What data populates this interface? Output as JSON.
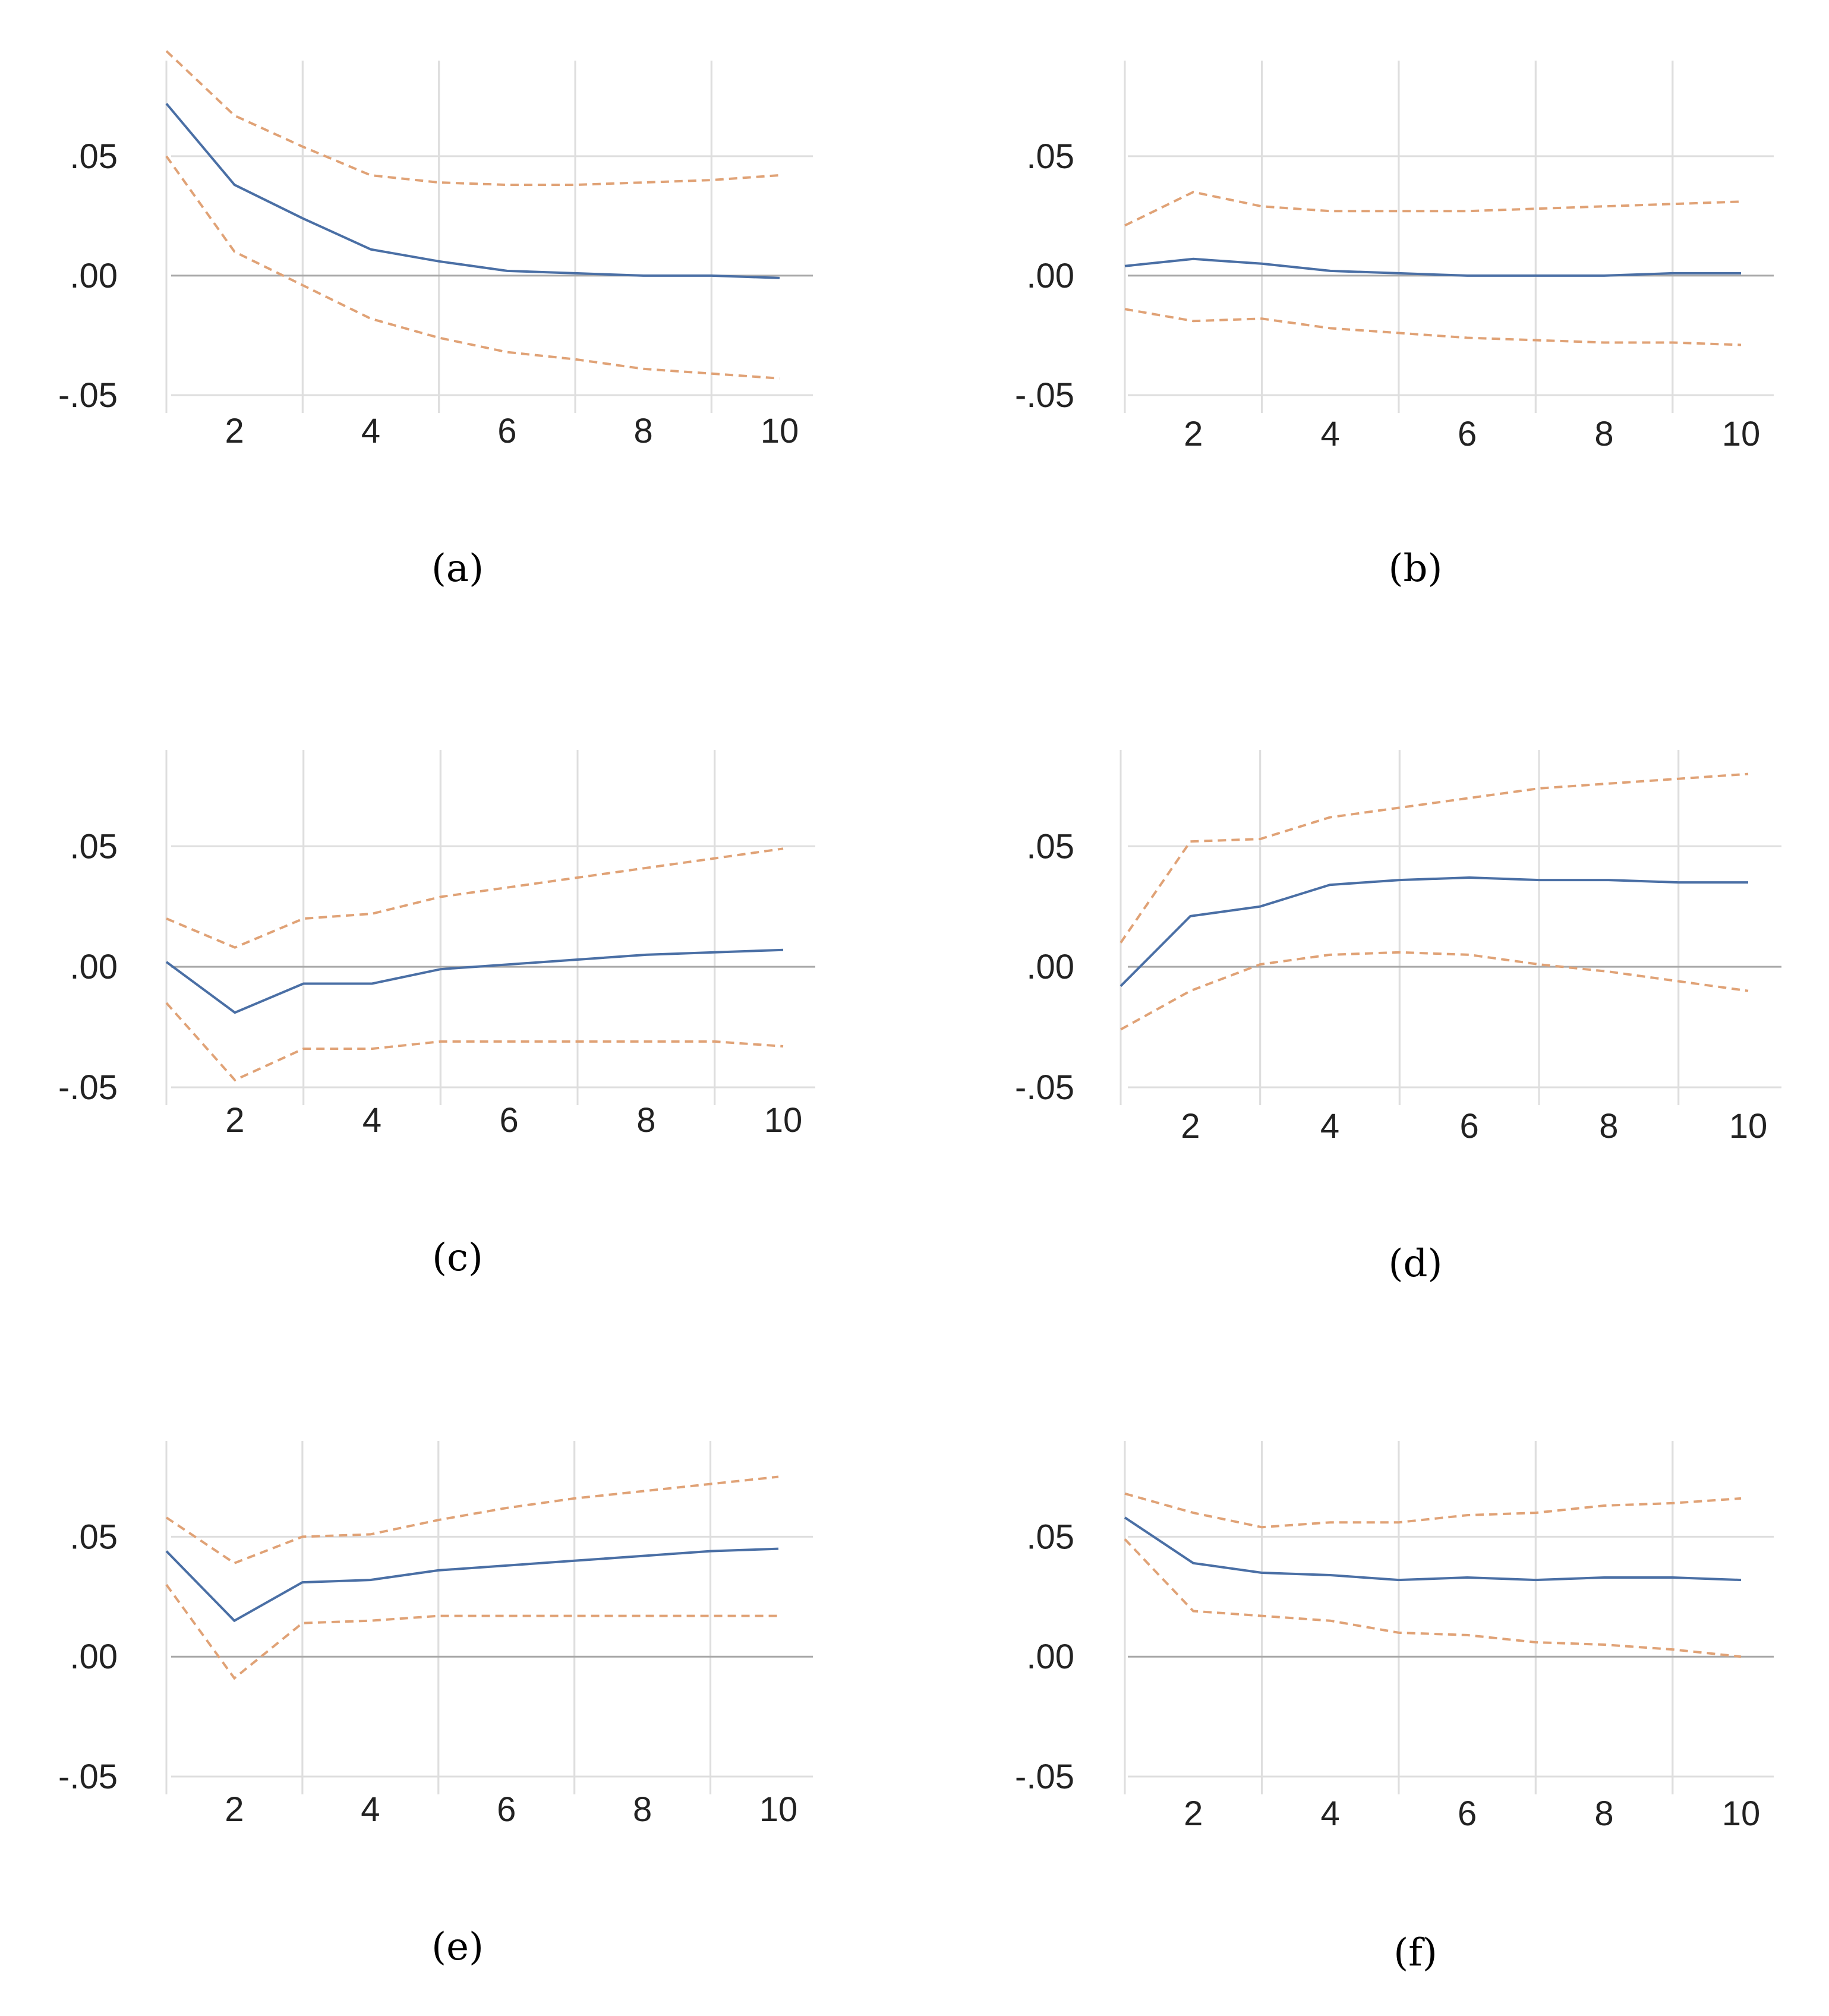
{
  "colors": {
    "response": "#4a6fa5",
    "bands": "#e0a276",
    "grid": "#dedede",
    "zero": "#a9a9a9",
    "text": "#222222"
  },
  "chart_data": [
    {
      "type": "line",
      "panel": "a",
      "caption": "(a)",
      "x": [
        1,
        2,
        3,
        4,
        5,
        6,
        7,
        8,
        9,
        10
      ],
      "xticks": [
        "2",
        "4",
        "6",
        "8",
        "10"
      ],
      "yticks": [
        ".05",
        ".00",
        "-.05"
      ],
      "ylim": [
        -0.05,
        0.09
      ],
      "series": [
        {
          "name": "response",
          "values": [
            0.072,
            0.038,
            0.024,
            0.011,
            0.006,
            0.002,
            0.001,
            0.0,
            0.0,
            -0.001
          ]
        },
        {
          "name": "upper band",
          "values": [
            0.094,
            0.067,
            0.054,
            0.042,
            0.039,
            0.038,
            0.038,
            0.039,
            0.04,
            0.042
          ]
        },
        {
          "name": "lower band",
          "values": [
            0.05,
            0.01,
            -0.004,
            -0.018,
            -0.026,
            -0.032,
            -0.035,
            -0.039,
            -0.041,
            -0.043
          ]
        }
      ]
    },
    {
      "type": "line",
      "panel": "b",
      "caption": "(b)",
      "x": [
        1,
        2,
        3,
        4,
        5,
        6,
        7,
        8,
        9,
        10
      ],
      "xticks": [
        "2",
        "4",
        "6",
        "8",
        "10"
      ],
      "yticks": [
        ".05",
        ".00",
        "-.05"
      ],
      "ylim": [
        -0.05,
        0.09
      ],
      "series": [
        {
          "name": "response",
          "values": [
            0.004,
            0.007,
            0.005,
            0.002,
            0.001,
            0.0,
            0.0,
            0.0,
            0.001,
            0.001
          ]
        },
        {
          "name": "upper band",
          "values": [
            0.021,
            0.035,
            0.029,
            0.027,
            0.027,
            0.027,
            0.028,
            0.029,
            0.03,
            0.031
          ]
        },
        {
          "name": "lower band",
          "values": [
            -0.014,
            -0.019,
            -0.018,
            -0.022,
            -0.024,
            -0.026,
            -0.027,
            -0.028,
            -0.028,
            -0.029
          ]
        }
      ]
    },
    {
      "type": "line",
      "panel": "c",
      "caption": "(c)",
      "x": [
        1,
        2,
        3,
        4,
        5,
        6,
        7,
        8,
        9,
        10
      ],
      "xticks": [
        "2",
        "4",
        "6",
        "8",
        "10"
      ],
      "yticks": [
        ".05",
        ".00",
        "-.05"
      ],
      "ylim": [
        -0.05,
        0.09
      ],
      "series": [
        {
          "name": "response",
          "values": [
            0.002,
            -0.019,
            -0.007,
            -0.007,
            -0.001,
            0.001,
            0.003,
            0.005,
            0.006,
            0.007
          ]
        },
        {
          "name": "upper band",
          "values": [
            0.02,
            0.008,
            0.02,
            0.022,
            0.029,
            0.033,
            0.037,
            0.041,
            0.045,
            0.049
          ]
        },
        {
          "name": "lower band",
          "values": [
            -0.015,
            -0.047,
            -0.034,
            -0.034,
            -0.031,
            -0.031,
            -0.031,
            -0.031,
            -0.031,
            -0.033
          ]
        }
      ]
    },
    {
      "type": "line",
      "panel": "d",
      "caption": "(d)",
      "x": [
        1,
        2,
        3,
        4,
        5,
        6,
        7,
        8,
        9,
        10
      ],
      "xticks": [
        "2",
        "4",
        "6",
        "8",
        "10"
      ],
      "yticks": [
        ".05",
        ".00",
        "-.05"
      ],
      "ylim": [
        -0.05,
        0.09
      ],
      "series": [
        {
          "name": "response",
          "values": [
            -0.008,
            0.021,
            0.025,
            0.034,
            0.036,
            0.037,
            0.036,
            0.036,
            0.035,
            0.035
          ]
        },
        {
          "name": "upper band",
          "values": [
            0.01,
            0.052,
            0.053,
            0.062,
            0.066,
            0.07,
            0.074,
            0.076,
            0.078,
            0.08
          ]
        },
        {
          "name": "lower band",
          "values": [
            -0.026,
            -0.01,
            0.001,
            0.005,
            0.006,
            0.005,
            0.001,
            -0.002,
            -0.006,
            -0.01
          ]
        }
      ]
    },
    {
      "type": "line",
      "panel": "e",
      "caption": "(e)",
      "x": [
        1,
        2,
        3,
        4,
        5,
        6,
        7,
        8,
        9,
        10
      ],
      "xticks": [
        "2",
        "4",
        "6",
        "8",
        "10"
      ],
      "yticks": [
        ".05",
        ".00",
        "-.05"
      ],
      "ylim": [
        -0.05,
        0.09
      ],
      "series": [
        {
          "name": "response",
          "values": [
            0.044,
            0.015,
            0.031,
            0.032,
            0.036,
            0.038,
            0.04,
            0.042,
            0.044,
            0.045
          ]
        },
        {
          "name": "upper band",
          "values": [
            0.058,
            0.039,
            0.05,
            0.051,
            0.057,
            0.062,
            0.066,
            0.069,
            0.072,
            0.075
          ]
        },
        {
          "name": "lower band",
          "values": [
            0.03,
            -0.009,
            0.014,
            0.015,
            0.017,
            0.017,
            0.017,
            0.017,
            0.017,
            0.017
          ]
        }
      ]
    },
    {
      "type": "line",
      "panel": "f",
      "caption": "(f)",
      "x": [
        1,
        2,
        3,
        4,
        5,
        6,
        7,
        8,
        9,
        10
      ],
      "xticks": [
        "2",
        "4",
        "6",
        "8",
        "10"
      ],
      "yticks": [
        ".05",
        ".00",
        "-.05"
      ],
      "ylim": [
        -0.05,
        0.09
      ],
      "series": [
        {
          "name": "response",
          "values": [
            0.058,
            0.039,
            0.035,
            0.034,
            0.032,
            0.033,
            0.032,
            0.033,
            0.033,
            0.032
          ]
        },
        {
          "name": "upper band",
          "values": [
            0.068,
            0.06,
            0.054,
            0.056,
            0.056,
            0.059,
            0.06,
            0.063,
            0.064,
            0.066
          ]
        },
        {
          "name": "lower band",
          "values": [
            0.049,
            0.019,
            0.017,
            0.015,
            0.01,
            0.009,
            0.006,
            0.005,
            0.003,
            0.0
          ]
        }
      ]
    }
  ]
}
